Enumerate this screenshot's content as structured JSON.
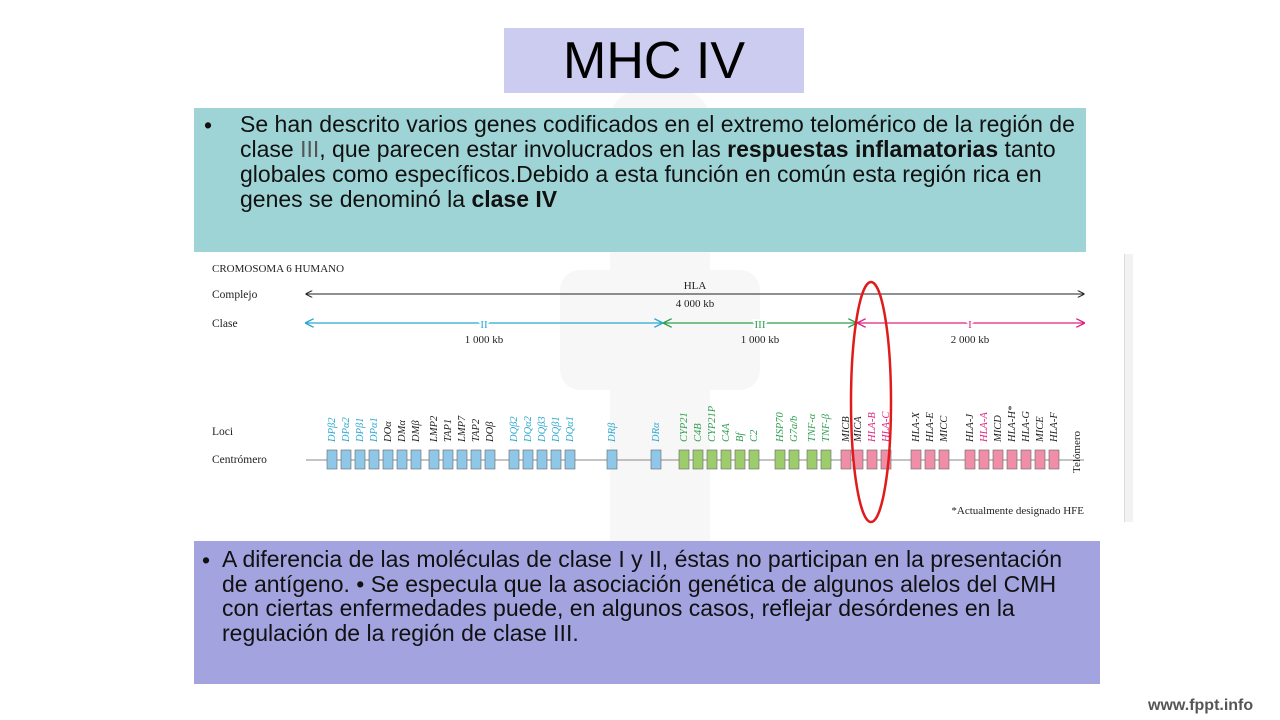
{
  "title": "MHC IV",
  "top_text": {
    "bullet": "•",
    "part1": "Se han descrito varios genes codificados en el extremo telomérico de la región de clase ",
    "part2": "III",
    "part3": ", que parecen estar involucrados en las ",
    "bold1": "respuestas inflamatorias",
    "part4": " tanto globales como específicos.Debido a esta función en común esta región rica en genes se denominó la ",
    "bold2": "clase IV"
  },
  "bottom_text": {
    "bullet": "•",
    "part1": "A diferencia de las moléculas de clase I y II, éstas no  participan en la presentación de antígeno.  • Se especula que la asociación genética de algunos alelos del CMH con ciertas enfermedades puede, en algunos casos, reflejar desórdenes en la regulación de la región de clase III."
  },
  "diagram": {
    "heading": "CROMOSOMA 6 HUMANO",
    "row_labels": {
      "complejo": "Complejo",
      "clase": "Clase",
      "loci": "Loci",
      "centromero": "Centrómero"
    },
    "hla": {
      "name": "HLA",
      "size": "4 000 kb"
    },
    "classes": [
      {
        "name": "II",
        "size": "1 000 kb",
        "color": "#2aa7cf"
      },
      {
        "name": "III",
        "size": "1 000 kb",
        "color": "#2e9e4f"
      },
      {
        "name": "I",
        "size": "2 000 kb",
        "color": "#e0217f"
      }
    ],
    "telomero": "Telómero",
    "footnote": "*Actualmente designado HFE",
    "colors": {
      "class2_box": "#8ec7e8",
      "class3_box": "#9ccc6b",
      "class1_box": "#f08ea8",
      "circle": "#e01b1b",
      "black": "#222222"
    },
    "loci": [
      {
        "name": "DPβ2",
        "color": "#2aa7cf"
      },
      {
        "name": "DPα2",
        "color": "#2aa7cf"
      },
      {
        "name": "DPβ1",
        "color": "#2aa7cf"
      },
      {
        "name": "DPα1",
        "color": "#2aa7cf"
      },
      {
        "name": "DOα",
        "color": "#222222"
      },
      {
        "name": "DMα",
        "color": "#222222"
      },
      {
        "name": "DMβ",
        "color": "#222222"
      },
      {
        "name": "LMP2",
        "color": "#222222"
      },
      {
        "name": "TAP1",
        "color": "#222222"
      },
      {
        "name": "LMP7",
        "color": "#222222"
      },
      {
        "name": "TAP2",
        "color": "#222222"
      },
      {
        "name": "DOβ",
        "color": "#222222"
      },
      {
        "name": "DQβ2",
        "color": "#2aa7cf"
      },
      {
        "name": "DQα2",
        "color": "#2aa7cf"
      },
      {
        "name": "DQβ3",
        "color": "#2aa7cf"
      },
      {
        "name": "DQβ1",
        "color": "#2aa7cf"
      },
      {
        "name": "DQα1",
        "color": "#2aa7cf"
      },
      {
        "name": "DRβ",
        "color": "#2aa7cf"
      },
      {
        "name": "DRα",
        "color": "#2aa7cf"
      },
      {
        "name": "CYP21",
        "color": "#2e9e4f"
      },
      {
        "name": "C4B",
        "color": "#2e9e4f"
      },
      {
        "name": "CYP21P",
        "color": "#2e9e4f"
      },
      {
        "name": "C4A",
        "color": "#2e9e4f"
      },
      {
        "name": "Bf",
        "color": "#2e9e4f"
      },
      {
        "name": "C2",
        "color": "#2e9e4f"
      },
      {
        "name": "HSP70",
        "color": "#2e9e4f"
      },
      {
        "name": "G7a/b",
        "color": "#2e9e4f"
      },
      {
        "name": "TNF-α",
        "color": "#2e9e4f"
      },
      {
        "name": "TNF-β",
        "color": "#2e9e4f"
      },
      {
        "name": "MICB",
        "color": "#222222"
      },
      {
        "name": "MICA",
        "color": "#222222"
      },
      {
        "name": "HLA-B",
        "color": "#e0217f"
      },
      {
        "name": "HLA-C",
        "color": "#e0217f"
      },
      {
        "name": "HLA-X",
        "color": "#222222"
      },
      {
        "name": "HLA-E",
        "color": "#222222"
      },
      {
        "name": "MICC",
        "color": "#222222"
      },
      {
        "name": "HLA-J",
        "color": "#222222"
      },
      {
        "name": "HLA-A",
        "color": "#e0217f"
      },
      {
        "name": "MICD",
        "color": "#222222"
      },
      {
        "name": "HLA-H*",
        "color": "#222222"
      },
      {
        "name": "HLA-G",
        "color": "#222222"
      },
      {
        "name": "MICE",
        "color": "#222222"
      },
      {
        "name": "HLA-F",
        "color": "#222222"
      }
    ]
  },
  "brand": "www.fppt.info"
}
